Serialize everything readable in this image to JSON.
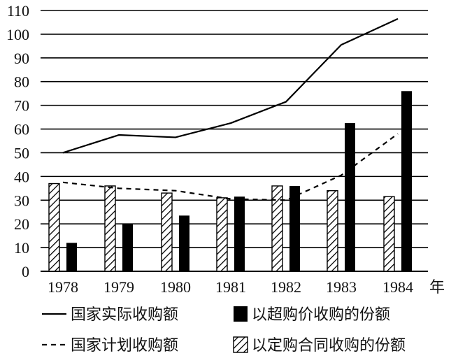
{
  "chart_data": {
    "type": "bar",
    "title": "",
    "xlabel": "年",
    "ylabel": "",
    "categories": [
      "1978",
      "1979",
      "1980",
      "1981",
      "1982",
      "1983",
      "1984"
    ],
    "ylim": [
      0,
      110
    ],
    "yticks": [
      0,
      10,
      20,
      30,
      40,
      50,
      60,
      70,
      80,
      90,
      100,
      110
    ],
    "grid": true,
    "bar_series": [
      {
        "name": "以定购合同收购的份额",
        "values": [
          37,
          36,
          33,
          31,
          36,
          34,
          31.5
        ],
        "pattern": "hatched"
      },
      {
        "name": "以超购价收购的份额",
        "values": [
          12,
          20,
          23.5,
          31.5,
          36,
          62.5,
          76
        ],
        "pattern": "solid"
      }
    ],
    "line_series": [
      {
        "name": "国家实际收购额",
        "values": [
          50,
          57.5,
          56.5,
          62.5,
          71.5,
          95.5,
          106.5
        ],
        "style": "solid"
      },
      {
        "name": "国家计划收购额",
        "values": [
          37.5,
          35,
          34,
          30.5,
          30,
          40.5,
          58
        ],
        "style": "dashed"
      }
    ],
    "legend_position": "bottom",
    "colors": {
      "bar_solid": "#000000",
      "bar_hatch": "#000000",
      "grid": "#000000",
      "text": "#111111"
    }
  }
}
